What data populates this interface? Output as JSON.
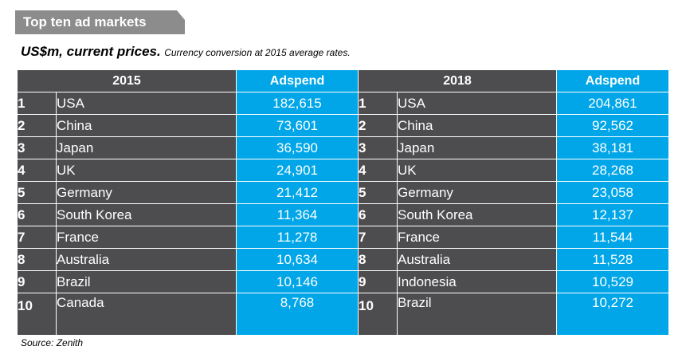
{
  "header": {
    "banner": "Top ten ad markets",
    "subtitle_main": "US$m, current prices.",
    "subtitle_note": "Currency conversion at 2015 average rates."
  },
  "table": {
    "left_header": "2015",
    "left_value_header": "Adspend",
    "right_header": "2018",
    "right_value_header": "Adspend",
    "rows": [
      {
        "rank_l": "1",
        "country_l": "USA",
        "value_l": "182,615",
        "rank_r": "1",
        "country_r": "USA",
        "value_r": "204,861"
      },
      {
        "rank_l": "2",
        "country_l": "China",
        "value_l": "73,601",
        "rank_r": "2",
        "country_r": "China",
        "value_r": "92,562"
      },
      {
        "rank_l": "3",
        "country_l": "Japan",
        "value_l": "36,590",
        "rank_r": "3",
        "country_r": "Japan",
        "value_r": "38,181"
      },
      {
        "rank_l": "4",
        "country_l": "UK",
        "value_l": "24,901",
        "rank_r": "4",
        "country_r": "UK",
        "value_r": "28,268"
      },
      {
        "rank_l": "5",
        "country_l": "Germany",
        "value_l": "21,412",
        "rank_r": "5",
        "country_r": "Germany",
        "value_r": "23,058"
      },
      {
        "rank_l": "6",
        "country_l": "South Korea",
        "value_l": "11,364",
        "rank_r": "6",
        "country_r": "South Korea",
        "value_r": "12,137"
      },
      {
        "rank_l": "7",
        "country_l": "France",
        "value_l": "11,278",
        "rank_r": "7",
        "country_r": "France",
        "value_r": "11,544"
      },
      {
        "rank_l": "8",
        "country_l": "Australia",
        "value_l": "10,634",
        "rank_r": "8",
        "country_r": "Australia",
        "value_r": "11,528"
      },
      {
        "rank_l": "9",
        "country_l": "Brazil",
        "value_l": "10,146",
        "rank_r": "9",
        "country_r": "Indonesia",
        "value_r": "10,529"
      },
      {
        "rank_l": "10",
        "country_l": "Canada",
        "value_l": "8,768",
        "rank_r": "10",
        "country_r": "Brazil",
        "value_r": "10,272"
      }
    ]
  },
  "footer": {
    "source": "Source: Zenith"
  },
  "colors": {
    "dark": "#4d4d4f",
    "accent": "#00a6e8",
    "banner": "#8c8c8c"
  }
}
